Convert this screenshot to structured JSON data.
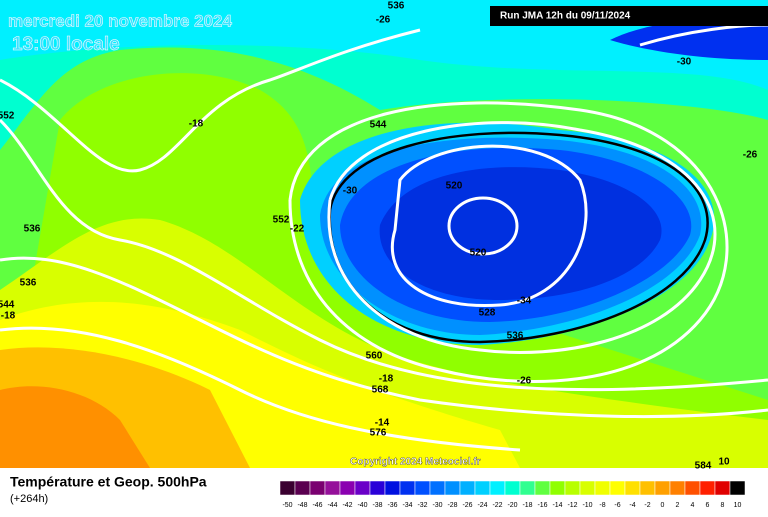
{
  "header": {
    "date": "mercredi 20 novembre 2024",
    "time": "13:00 locale",
    "run": "Run JMA 12h du 09/11/2024"
  },
  "copyright": "Copyright 2024 Meteociel.fr",
  "footer": {
    "title": "Température et Geop. 500hPa",
    "lead": "(+264h)"
  },
  "contour_labels": [
    "536",
    "-26",
    "-30",
    "552",
    "-18",
    "544",
    "-26",
    "520",
    "-30",
    "552",
    "-22",
    "536",
    "520",
    "536",
    "544",
    "-18",
    "-34",
    "528",
    "536",
    "560",
    "-18",
    "-26",
    "568",
    "-14",
    "576",
    "584",
    "10"
  ],
  "legend": {
    "values": [
      -50,
      -48,
      -46,
      -44,
      -42,
      -40,
      -38,
      -36,
      -34,
      -32,
      -30,
      -28,
      -26,
      -24,
      -22,
      -20,
      -18,
      -16,
      -14,
      -12,
      -10,
      -8,
      -6,
      -4,
      -2,
      0,
      2,
      4,
      6,
      8,
      10
    ],
    "colors": [
      "#3a0030",
      "#5a0050",
      "#7a0070",
      "#95109a",
      "#8a00b0",
      "#6a00c8",
      "#2a00d8",
      "#0010e0",
      "#0030f0",
      "#0050ff",
      "#0070ff",
      "#0090ff",
      "#00b0ff",
      "#00d0ff",
      "#00f0ff",
      "#00ffd0",
      "#30ff90",
      "#60ff40",
      "#90ff00",
      "#b8ff00",
      "#d8ff00",
      "#f0ff00",
      "#ffff00",
      "#ffe000",
      "#ffc000",
      "#ffa000",
      "#ff8000",
      "#ff5000",
      "#ff2000",
      "#e00000",
      "#000000"
    ]
  }
}
